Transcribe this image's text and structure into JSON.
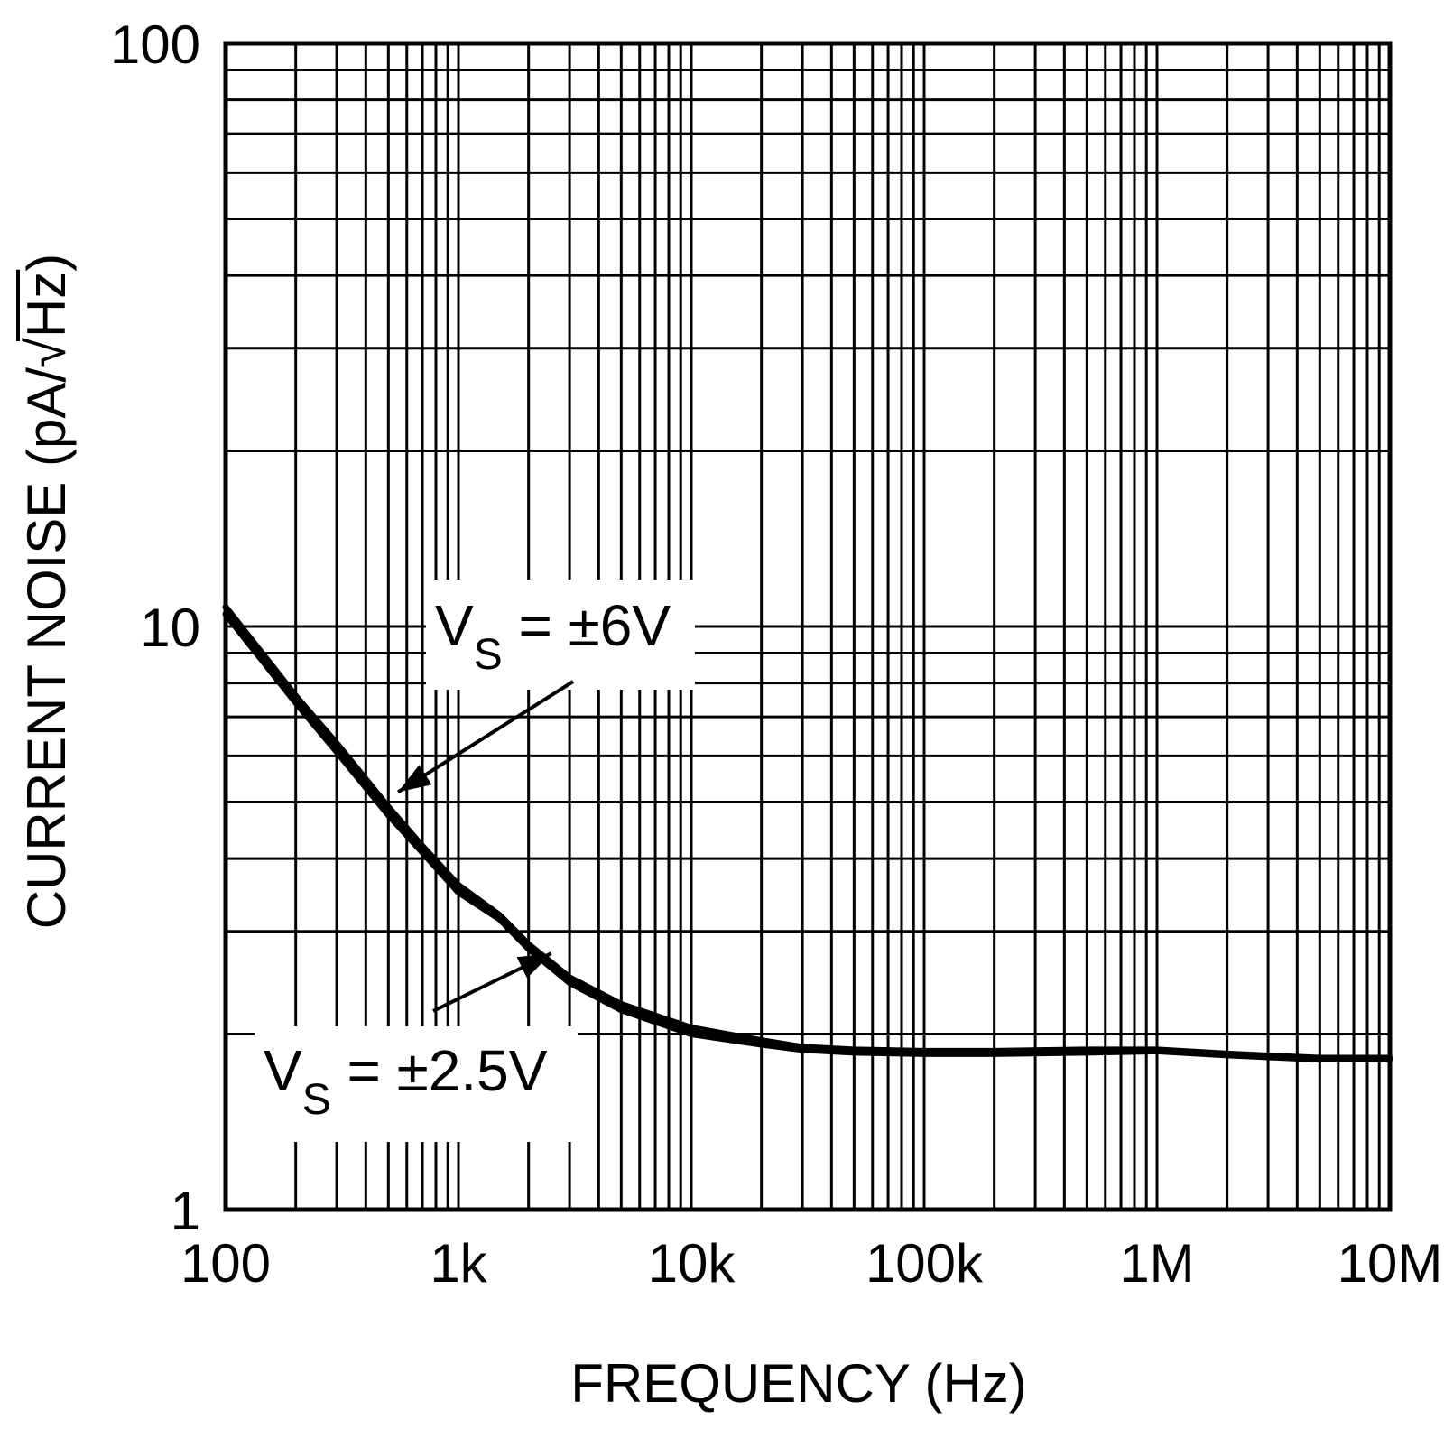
{
  "chart_data": {
    "type": "line",
    "xlabel": "FREQUENCY (Hz)",
    "ylabel": "CURRENT NOISE (pA/√Hz)",
    "ylabel_parts": {
      "before_radical": "CURRENT NOISE (pA/",
      "radical": "√",
      "radicand": "Hz",
      "after": ")"
    },
    "x_scale": "log",
    "y_scale": "log",
    "xlim": [
      100,
      10000000
    ],
    "ylim": [
      1,
      100
    ],
    "grid": true,
    "x_ticks": [
      {
        "value": 100,
        "label": "100"
      },
      {
        "value": 1000,
        "label": "1k"
      },
      {
        "value": 10000,
        "label": "10k"
      },
      {
        "value": 100000,
        "label": "100k"
      },
      {
        "value": 1000000,
        "label": "1M"
      },
      {
        "value": 10000000,
        "label": "10M"
      }
    ],
    "y_ticks": [
      {
        "value": 1,
        "label": "1"
      },
      {
        "value": 10,
        "label": "10"
      },
      {
        "value": 100,
        "label": "100"
      }
    ],
    "series": [
      {
        "name": "VS = ±6V",
        "x": [
          100,
          200,
          300,
          500,
          700,
          1000,
          1500,
          2000,
          3000,
          5000,
          7000,
          10000,
          20000,
          30000,
          50000,
          100000,
          200000,
          500000,
          1000000,
          2000000,
          5000000,
          10000000
        ],
        "y": [
          10.8,
          7.6,
          6.3,
          4.9,
          4.2,
          3.6,
          3.2,
          2.85,
          2.5,
          2.25,
          2.15,
          2.05,
          1.95,
          1.9,
          1.88,
          1.87,
          1.87,
          1.88,
          1.88,
          1.85,
          1.82,
          1.82
        ]
      },
      {
        "name": "VS = ±2.5V",
        "x": [
          100,
          200,
          300,
          500,
          700,
          1000,
          1500,
          2000,
          3000,
          5000,
          7000,
          10000,
          20000,
          30000,
          50000,
          100000,
          200000,
          500000,
          1000000,
          2000000,
          5000000,
          10000000
        ],
        "y": [
          10.5,
          7.4,
          6.1,
          4.75,
          4.1,
          3.5,
          3.15,
          2.8,
          2.45,
          2.2,
          2.1,
          2.0,
          1.92,
          1.88,
          1.86,
          1.85,
          1.85,
          1.86,
          1.87,
          1.84,
          1.81,
          1.81
        ]
      }
    ],
    "annotations": [
      {
        "main": "V",
        "sub": "S",
        "rest": " = ±6V",
        "series": "VS = ±6V",
        "arrow_to": {
          "x": 550,
          "y": 5.2
        }
      },
      {
        "main": "V",
        "sub": "S",
        "rest": " = ±2.5V",
        "series": "VS = ±2.5V",
        "arrow_to": {
          "x": 2500,
          "y": 2.75
        }
      }
    ]
  }
}
